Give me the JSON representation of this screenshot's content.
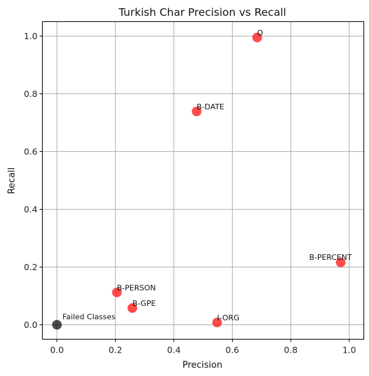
{
  "chart_data": {
    "type": "scatter",
    "title": "Turkish Char Precision vs Recall",
    "xlabel": "Precision",
    "ylabel": "Recall",
    "xlim": [
      -0.05,
      1.05
    ],
    "ylim": [
      -0.05,
      1.05
    ],
    "xticks": [
      "0.0",
      "0.2",
      "0.4",
      "0.6",
      "0.8",
      "1.0"
    ],
    "yticks": [
      "0.0",
      "0.2",
      "0.4",
      "0.6",
      "0.8",
      "1.0"
    ],
    "grid": true,
    "colors": {
      "point": "#ff0000",
      "failed": "#000000",
      "grid": "#b0b0b0",
      "axis": "#000000"
    },
    "points": [
      {
        "label": "O",
        "x": 0.685,
        "y": 0.995,
        "label_anchor": "start"
      },
      {
        "label": "B-DATE",
        "x": 0.478,
        "y": 0.739,
        "label_anchor": "start"
      },
      {
        "label": "B-PERCENT",
        "x": 0.971,
        "y": 0.216,
        "label_anchor": "end"
      },
      {
        "label": "B-PERSON",
        "x": 0.205,
        "y": 0.112,
        "label_anchor": "start"
      },
      {
        "label": "B-GPE",
        "x": 0.258,
        "y": 0.058,
        "label_anchor": "start"
      },
      {
        "label": "I-ORG",
        "x": 0.548,
        "y": 0.008,
        "label_anchor": "start"
      },
      {
        "label": "Failed Classes",
        "x": 0.0,
        "y": 0.0,
        "label_anchor": "start",
        "failed": true
      }
    ]
  }
}
